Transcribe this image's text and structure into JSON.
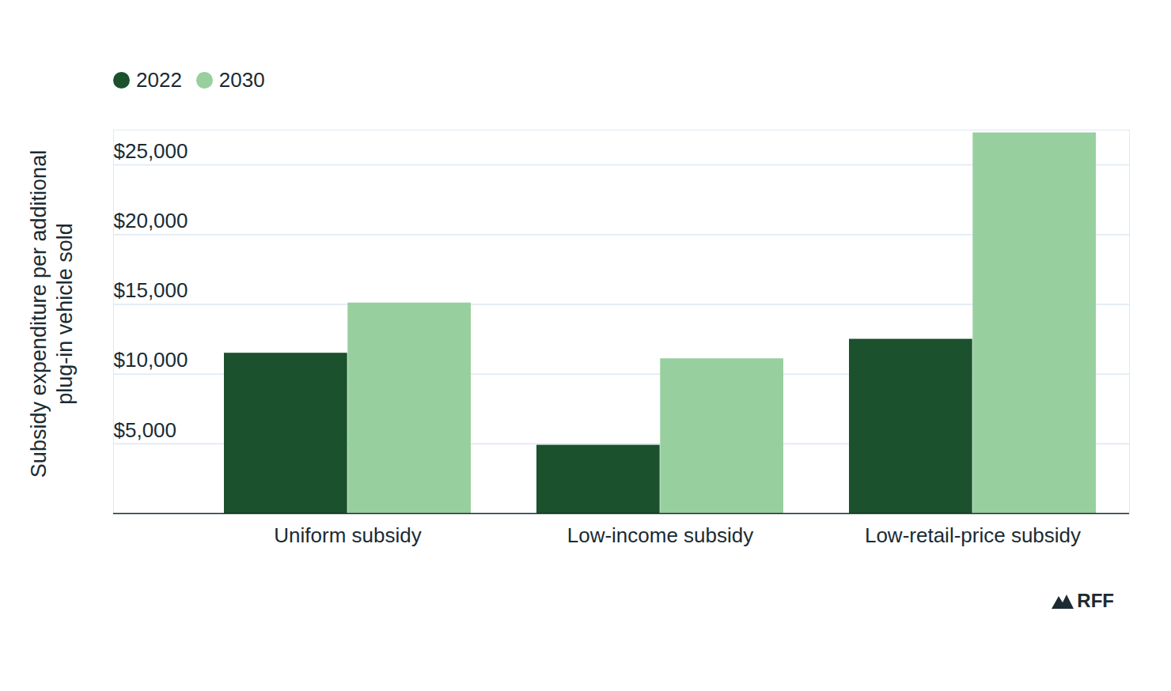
{
  "chart_data": {
    "type": "bar",
    "y_label": "Subsidy expenditure per additional plug-in vehicle sold",
    "categories": [
      "Uniform subsidy",
      "Low-income subsidy",
      "Low-retail-price subsidy"
    ],
    "series": [
      {
        "name": "2022",
        "color": "#1b512d",
        "values": [
          11500,
          4900,
          12500
        ]
      },
      {
        "name": "2030",
        "color": "#98cf9f",
        "values": [
          15100,
          11100,
          27300
        ]
      }
    ],
    "ylim": [
      0,
      27500
    ],
    "yticks": [
      {
        "value": 5000,
        "label": "$5,000"
      },
      {
        "value": 10000,
        "label": "$10,000"
      },
      {
        "value": 15000,
        "label": "$15,000"
      },
      {
        "value": 20000,
        "label": "$20,000"
      },
      {
        "value": 25000,
        "label": "$25,000"
      }
    ],
    "grid": true,
    "legend": "top-left",
    "source": "RFF"
  }
}
